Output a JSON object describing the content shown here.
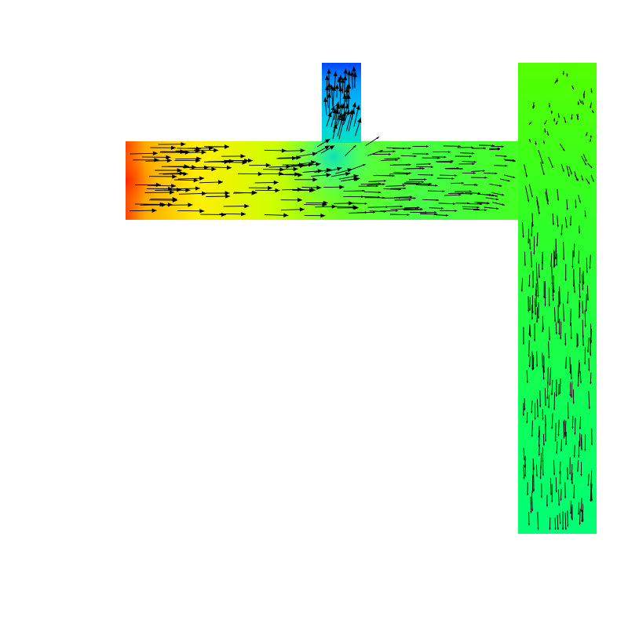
{
  "figure": {
    "type": "flow-field-visualization",
    "background_color": "#ffffff",
    "arrow_color": "#000000",
    "colormap": [
      "#0000ff",
      "#00c8ff",
      "#00ff66",
      "#66ff00",
      "#ccff00",
      "#ffff00",
      "#ffaa00",
      "#ff3300"
    ],
    "regions": [
      {
        "name": "horizontal-channel",
        "field": "inlet-high-to-junction"
      },
      {
        "name": "upper-branch",
        "field": "outlet-low-upward"
      },
      {
        "name": "right-column",
        "field": "uniform-downward"
      }
    ]
  }
}
